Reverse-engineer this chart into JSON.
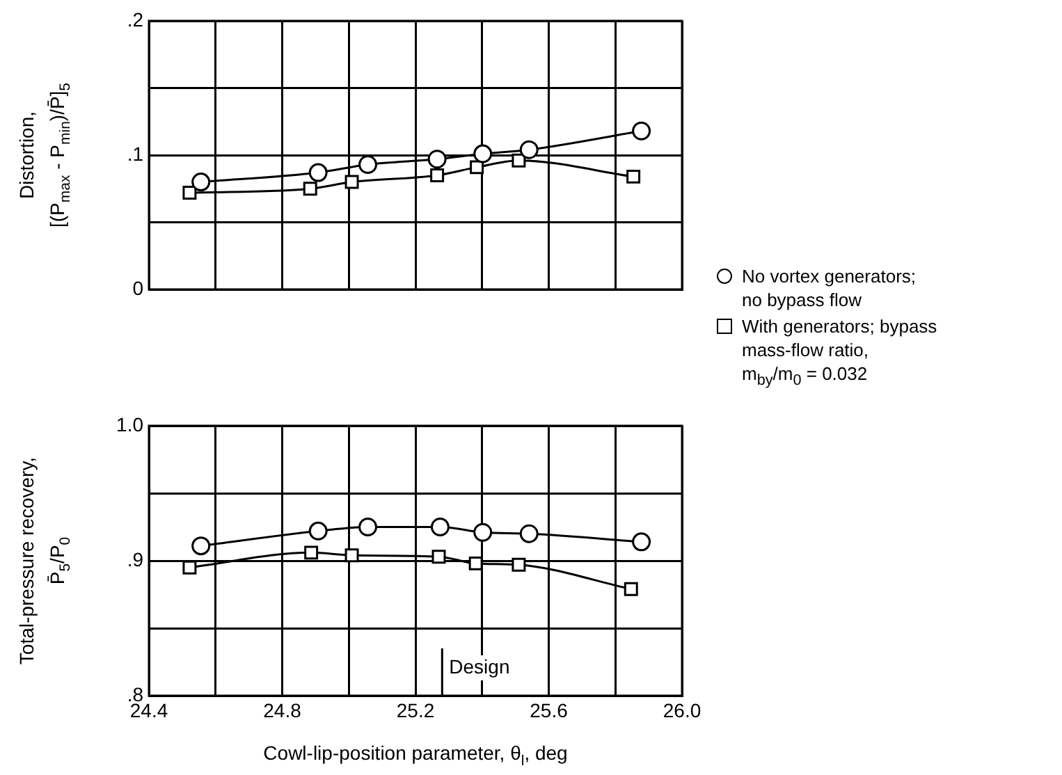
{
  "chart_data": [
    {
      "type": "line",
      "ylabel": "Distortion,\n[(P$_{max}$ - P$_{min}$)/P̄]$_{5}$",
      "xlim": [
        24.4,
        26.0
      ],
      "xticks": [
        24.4,
        {
          "value": 24.6,
          "label": null
        },
        24.8,
        {
          "value": 25.0,
          "label": null
        },
        25.2,
        {
          "value": 25.4,
          "label": null
        },
        25.6,
        {
          "value": 25.8,
          "label": null
        },
        26.0
      ],
      "ylim": [
        0,
        0.2
      ],
      "yticks": [
        {
          "value": 0,
          "label": "0"
        },
        {
          "value": 0.05,
          "label": null
        },
        {
          "value": 0.1,
          "label": ".1"
        },
        {
          "value": 0.15,
          "label": null
        },
        {
          "value": 0.2,
          "label": ".2"
        }
      ],
      "tick_labels": "y",
      "grid": true,
      "legend": "right",
      "line_style": "solid",
      "series": [
        {
          "name": "No vortex generators;\nno bypass flow",
          "color": "#000000",
          "marker": "circle",
          "x": [
            24.556,
            24.908,
            25.057,
            25.265,
            25.402,
            25.541,
            25.878
          ],
          "values": [
            0.08,
            0.087,
            0.093,
            0.097,
            0.101,
            0.104,
            0.118
          ]
        },
        {
          "name": "With generators; bypass\nmass-flow ratio,\nm$_{by}$/m$_{0}$ = 0.032",
          "color": "#000000",
          "marker": "square",
          "x": [
            24.522,
            24.884,
            25.009,
            25.265,
            25.384,
            25.51,
            25.854
          ],
          "values": [
            0.072,
            0.075,
            0.08,
            0.085,
            0.091,
            0.096,
            0.084
          ]
        }
      ]
    },
    {
      "type": "line",
      "ylabel": "Total-pressure recovery,\nP̄$_{5}$/P$_{0}$",
      "xlabel": "Cowl-lip-position parameter, θ$_{l}$, deg",
      "xlim": [
        24.4,
        26.0
      ],
      "xticks": [
        24.4,
        {
          "value": 24.6,
          "label": null
        },
        24.8,
        {
          "value": 25.0,
          "label": null
        },
        25.2,
        {
          "value": 25.4,
          "label": null
        },
        25.6,
        {
          "value": 25.8,
          "label": null
        },
        {
          "value": 26.0,
          "label": "26.0"
        }
      ],
      "ylim": [
        0.8,
        1.0
      ],
      "yticks": [
        {
          "value": 0.8,
          "label": ".8"
        },
        {
          "value": 0.85,
          "label": null
        },
        {
          "value": 0.9,
          "label": ".9"
        },
        {
          "value": 0.95,
          "label": null
        },
        {
          "value": 1.0,
          "label": "1.0"
        }
      ],
      "grid": true,
      "line_style": "solid",
      "ref_lines": [
        {
          "axis": "x",
          "value": 25.28,
          "label": "Design"
        }
      ],
      "series": [
        {
          "color": "#000000",
          "marker": "circle",
          "x": [
            24.556,
            24.908,
            25.057,
            25.274,
            25.402,
            25.541,
            25.878
          ],
          "values": [
            0.911,
            0.922,
            0.925,
            0.925,
            0.921,
            0.92,
            0.914
          ]
        },
        {
          "color": "#000000",
          "marker": "square",
          "x": [
            24.522,
            24.887,
            25.009,
            25.27,
            25.381,
            25.51,
            25.847
          ],
          "values": [
            0.895,
            0.906,
            0.904,
            0.903,
            0.898,
            0.897,
            0.879
          ]
        }
      ]
    }
  ]
}
